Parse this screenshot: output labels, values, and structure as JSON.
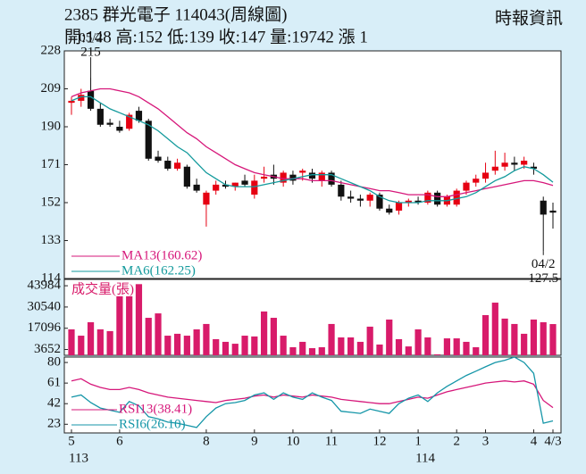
{
  "header": {
    "title": "2385 群光電子 114043(周線圖)",
    "source": "時報資訊",
    "quote": "開:148 高:152 低:139 收:147 量:19742 漲 1"
  },
  "chart_data": [
    {
      "type": "candlestick",
      "categories": [
        "5",
        null,
        null,
        null,
        null,
        "6",
        null,
        null,
        null,
        null,
        null,
        null,
        null,
        null,
        "8",
        null,
        null,
        null,
        null,
        "9",
        null,
        null,
        null,
        "10",
        null,
        null,
        null,
        "11",
        null,
        null,
        null,
        null,
        "12",
        null,
        null,
        null,
        "1",
        null,
        null,
        null,
        "2",
        null,
        null,
        "3",
        null,
        null,
        null,
        null,
        "4",
        null,
        "4/3"
      ],
      "year_categories": [
        "113",
        null,
        null,
        null,
        null,
        null,
        null,
        null,
        null,
        null,
        null,
        null,
        null,
        null,
        null,
        null,
        null,
        null,
        null,
        null,
        null,
        null,
        null,
        null,
        null,
        null,
        null,
        null,
        null,
        null,
        null,
        null,
        null,
        null,
        null,
        null,
        "114",
        null,
        null,
        null,
        null,
        null,
        null,
        null,
        null,
        null,
        null,
        null,
        null,
        null,
        null
      ],
      "open": [
        202,
        203,
        208,
        199,
        192,
        190,
        189,
        198,
        193,
        175,
        173,
        169,
        170,
        161,
        151,
        158,
        161,
        160,
        163,
        156,
        164,
        166,
        162,
        166,
        167,
        167,
        163,
        167,
        161,
        155,
        154,
        153,
        156,
        149,
        148,
        152,
        153,
        152,
        157,
        151,
        151,
        158,
        162,
        164,
        168,
        170,
        172,
        171,
        170,
        153,
        148
      ],
      "high": [
        205,
        209,
        215,
        202,
        194,
        193,
        197,
        200,
        194,
        178,
        175,
        174,
        171,
        164,
        158,
        163,
        163,
        162,
        166,
        166,
        170,
        171,
        168,
        168,
        169,
        169,
        168,
        168,
        163,
        158,
        156,
        157,
        157,
        151,
        153,
        154,
        155,
        158,
        158,
        156,
        159,
        163,
        166,
        172,
        178,
        177,
        175,
        175,
        172,
        155,
        152
      ],
      "low": [
        196,
        200,
        198,
        190,
        190,
        187,
        188,
        192,
        173,
        172,
        168,
        168,
        159,
        157,
        140,
        156,
        159,
        158,
        160,
        154,
        162,
        161,
        160,
        161,
        163,
        162,
        160,
        160,
        153,
        152,
        150,
        150,
        148,
        146,
        146,
        150,
        151,
        151,
        150,
        150,
        150,
        156,
        160,
        162,
        166,
        168,
        168,
        169,
        166,
        127.5,
        139
      ],
      "close": [
        203,
        206,
        199,
        191,
        191,
        188,
        196,
        193,
        174,
        173,
        169,
        172,
        160,
        158,
        157,
        161,
        160,
        162,
        161,
        163,
        165,
        164,
        167,
        163,
        168,
        164,
        167,
        161,
        155,
        154,
        153,
        156,
        149,
        147,
        152,
        153,
        152,
        157,
        151,
        155,
        158,
        162,
        164,
        167,
        170,
        172,
        171,
        173,
        169,
        146,
        147
      ],
      "up_color": "#e60012",
      "down_color": "#111111",
      "series": [
        {
          "name": "MA13(160.62)",
          "color": "#d6177a",
          "values": [
            205,
            207,
            208,
            209,
            209,
            208,
            207,
            205,
            202,
            199,
            195,
            191,
            187,
            184,
            180,
            177,
            174,
            171,
            169,
            167,
            166,
            165,
            164,
            164,
            164,
            163,
            163,
            163,
            162,
            161,
            160,
            159,
            158,
            158,
            157,
            156,
            156,
            156,
            155,
            155,
            156,
            157,
            158,
            159,
            160,
            161,
            162,
            163,
            163,
            162,
            160.62
          ]
        },
        {
          "name": "MA6(162.25)",
          "color": "#139a9c",
          "values": [
            203,
            205,
            205,
            202,
            199,
            197,
            195,
            193,
            191,
            188,
            184,
            180,
            177,
            172,
            167,
            164,
            161,
            160,
            160,
            160,
            161,
            162,
            163,
            164,
            165,
            166,
            166,
            166,
            164,
            162,
            160,
            158,
            155,
            153,
            152,
            152,
            152,
            153,
            153,
            153,
            154,
            155,
            157,
            160,
            163,
            165,
            168,
            170,
            169,
            166,
            162.25
          ]
        }
      ],
      "annotations": [
        {
          "label": "05/2",
          "value": 215
        },
        {
          "label": "04/2",
          "value": 127.5
        }
      ],
      "ylim": [
        114,
        228
      ],
      "yticks": [
        114,
        133,
        152,
        171,
        190,
        209,
        228
      ]
    },
    {
      "type": "bar",
      "title": "成交量(張)",
      "color": "#d81b6a",
      "values": [
        16400,
        12400,
        20900,
        16400,
        15300,
        37300,
        37300,
        45000,
        23700,
        26500,
        12400,
        13600,
        12400,
        16400,
        19800,
        10200,
        8500,
        7300,
        12400,
        11900,
        27700,
        23700,
        12400,
        5100,
        8500,
        4500,
        5100,
        19800,
        11300,
        11300,
        8500,
        18100,
        6800,
        22600,
        10200,
        5600,
        16400,
        11300,
        600,
        10700,
        10700,
        8500,
        5100,
        25400,
        33300,
        23200,
        19800,
        13600,
        22600,
        20900,
        19742
      ],
      "ylim": [
        0,
        48000
      ],
      "yticks": [
        3652,
        17096,
        30540,
        43984
      ]
    },
    {
      "type": "line",
      "series": [
        {
          "name": "RSI13(38.41)",
          "color": "#d6177a",
          "values": [
            63,
            65,
            60,
            57,
            55,
            55,
            57,
            55,
            52,
            50,
            48,
            47,
            46,
            45,
            44,
            43,
            45,
            46,
            47,
            49,
            50,
            48,
            50,
            49,
            48,
            50,
            49,
            48,
            46,
            45,
            44,
            43,
            42,
            42,
            44,
            46,
            48,
            47,
            50,
            53,
            55,
            57,
            59,
            61,
            62,
            63,
            62,
            63,
            60,
            45,
            38.41
          ]
        },
        {
          "name": "RSI6(26.10)",
          "color": "#1596a8",
          "values": [
            48,
            50,
            43,
            38,
            36,
            34,
            44,
            40,
            30,
            28,
            25,
            24,
            22,
            20,
            30,
            38,
            42,
            43,
            45,
            50,
            52,
            46,
            52,
            48,
            46,
            52,
            48,
            45,
            35,
            34,
            33,
            37,
            35,
            33,
            42,
            47,
            50,
            44,
            52,
            58,
            63,
            68,
            72,
            76,
            80,
            82,
            85,
            80,
            70,
            24,
            26.1
          ]
        }
      ],
      "ylim": [
        15,
        85
      ],
      "yticks": [
        23,
        42,
        61,
        80
      ]
    }
  ]
}
